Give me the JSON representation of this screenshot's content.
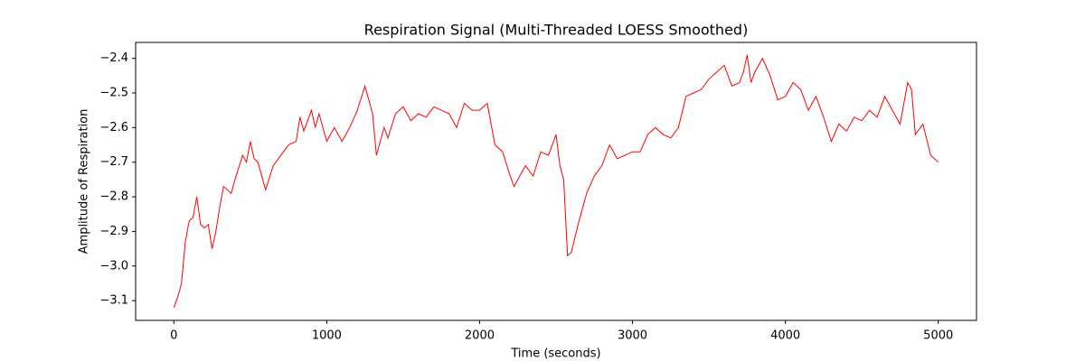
{
  "chart_data": {
    "type": "line",
    "title": "Respiration Signal (Multi-Threaded LOESS Smoothed)",
    "x_label": "Time (seconds)",
    "y_label": "Amplitude of Respiration",
    "color": "#ff0000",
    "xlim": [
      -250,
      5250
    ],
    "ylim": [
      -3.157,
      -2.354
    ],
    "xticks": [
      0,
      1000,
      2000,
      3000,
      4000,
      5000
    ],
    "yticks": [
      {
        "value": -3.1,
        "label": "−3.1"
      },
      {
        "value": -3.0,
        "label": "−3.0"
      },
      {
        "value": -2.9,
        "label": "−2.9"
      },
      {
        "value": -2.8,
        "label": "−2.8"
      },
      {
        "value": -2.7,
        "label": "−2.7"
      },
      {
        "value": -2.6,
        "label": "−2.6"
      },
      {
        "value": -2.5,
        "label": "−2.5"
      },
      {
        "value": -2.4,
        "label": "−2.4"
      }
    ],
    "x": [
      0,
      25,
      50,
      75,
      100,
      125,
      150,
      175,
      200,
      225,
      250,
      275,
      300,
      325,
      375,
      400,
      450,
      475,
      500,
      525,
      550,
      600,
      650,
      700,
      750,
      800,
      825,
      850,
      900,
      925,
      950,
      1000,
      1050,
      1100,
      1150,
      1200,
      1250,
      1275,
      1300,
      1325,
      1375,
      1400,
      1450,
      1500,
      1550,
      1600,
      1650,
      1700,
      1750,
      1800,
      1850,
      1900,
      1950,
      2000,
      2050,
      2100,
      2150,
      2200,
      2225,
      2300,
      2350,
      2400,
      2450,
      2500,
      2525,
      2550,
      2575,
      2600,
      2650,
      2700,
      2750,
      2800,
      2850,
      2900,
      2950,
      3000,
      3050,
      3100,
      3150,
      3200,
      3250,
      3300,
      3350,
      3400,
      3450,
      3500,
      3550,
      3600,
      3650,
      3700,
      3725,
      3750,
      3775,
      3800,
      3850,
      3900,
      3950,
      4000,
      4050,
      4100,
      4150,
      4200,
      4250,
      4300,
      4350,
      4400,
      4450,
      4500,
      4550,
      4600,
      4650,
      4700,
      4750,
      4800,
      4825,
      4850,
      4900,
      4950,
      5000
    ],
    "values": [
      -3.12,
      -3.09,
      -3.05,
      -2.93,
      -2.87,
      -2.86,
      -2.8,
      -2.88,
      -2.89,
      -2.88,
      -2.95,
      -2.9,
      -2.83,
      -2.77,
      -2.79,
      -2.75,
      -2.68,
      -2.7,
      -2.64,
      -2.69,
      -2.7,
      -2.78,
      -2.71,
      -2.68,
      -2.65,
      -2.64,
      -2.57,
      -2.61,
      -2.55,
      -2.6,
      -2.56,
      -2.64,
      -2.6,
      -2.64,
      -2.6,
      -2.55,
      -2.48,
      -2.52,
      -2.56,
      -2.68,
      -2.6,
      -2.63,
      -2.56,
      -2.54,
      -2.58,
      -2.56,
      -2.57,
      -2.54,
      -2.55,
      -2.56,
      -2.6,
      -2.53,
      -2.55,
      -2.55,
      -2.53,
      -2.65,
      -2.67,
      -2.74,
      -2.77,
      -2.71,
      -2.74,
      -2.67,
      -2.68,
      -2.62,
      -2.71,
      -2.75,
      -2.97,
      -2.96,
      -2.87,
      -2.79,
      -2.74,
      -2.71,
      -2.65,
      -2.69,
      -2.68,
      -2.67,
      -2.67,
      -2.62,
      -2.6,
      -2.62,
      -2.63,
      -2.6,
      -2.51,
      -2.5,
      -2.49,
      -2.46,
      -2.44,
      -2.42,
      -2.48,
      -2.47,
      -2.44,
      -2.39,
      -2.47,
      -2.44,
      -2.4,
      -2.45,
      -2.52,
      -2.51,
      -2.47,
      -2.49,
      -2.55,
      -2.51,
      -2.57,
      -2.64,
      -2.59,
      -2.61,
      -2.57,
      -2.58,
      -2.55,
      -2.57,
      -2.51,
      -2.55,
      -2.59,
      -2.47,
      -2.49,
      -2.62,
      -2.59,
      -2.68,
      -2.7
    ]
  }
}
